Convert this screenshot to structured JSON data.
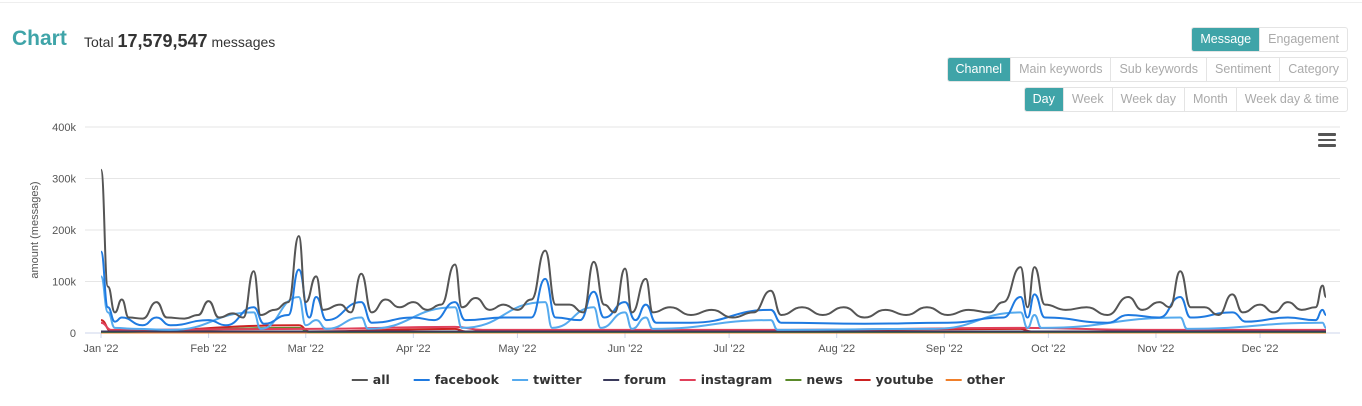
{
  "header": {
    "title": "Chart",
    "total_prefix": "Total",
    "total_value": "17,579,547",
    "total_suffix": "messages"
  },
  "metric_tabs": [
    {
      "label": "Message",
      "active": true
    },
    {
      "label": "Engagement",
      "active": false
    }
  ],
  "group_tabs": [
    {
      "label": "Channel",
      "active": true
    },
    {
      "label": "Main keywords",
      "active": false
    },
    {
      "label": "Sub keywords",
      "active": false
    },
    {
      "label": "Sentiment",
      "active": false
    },
    {
      "label": "Category",
      "active": false
    }
  ],
  "period_tabs": [
    {
      "label": "Day",
      "active": true
    },
    {
      "label": "Week",
      "active": false
    },
    {
      "label": "Week day",
      "active": false
    },
    {
      "label": "Month",
      "active": false
    },
    {
      "label": "Week day & time",
      "active": false
    }
  ],
  "chart_data": {
    "type": "line",
    "ylabel": "amount (messages)",
    "ylim": [
      0,
      400000
    ],
    "yticks": [
      "0",
      "100k",
      "200k",
      "300k",
      "400k"
    ],
    "xticks": [
      {
        "day": 0,
        "label": "Jan '22"
      },
      {
        "day": 31,
        "label": "Feb '22"
      },
      {
        "day": 59,
        "label": "Mar '22"
      },
      {
        "day": 90,
        "label": "Apr '22"
      },
      {
        "day": 120,
        "label": "May '22"
      },
      {
        "day": 151,
        "label": "Jun '22"
      },
      {
        "day": 181,
        "label": "Jul '22"
      },
      {
        "day": 212,
        "label": "Aug '22"
      },
      {
        "day": 243,
        "label": "Sep '22"
      },
      {
        "day": 273,
        "label": "Oct '22"
      },
      {
        "day": 304,
        "label": "Nov '22"
      },
      {
        "day": 334,
        "label": "Dec '22"
      }
    ],
    "x_range_days": [
      0,
      353
    ],
    "series": [
      {
        "name": "all",
        "color": "#555555",
        "points": [
          [
            0,
            317000
          ],
          [
            2,
            90000
          ],
          [
            4,
            40000
          ],
          [
            6,
            65000
          ],
          [
            8,
            30000
          ],
          [
            12,
            28000
          ],
          [
            16,
            60000
          ],
          [
            19,
            30000
          ],
          [
            24,
            28000
          ],
          [
            28,
            35000
          ],
          [
            31,
            62000
          ],
          [
            34,
            30000
          ],
          [
            38,
            38000
          ],
          [
            41,
            30000
          ],
          [
            44,
            120000
          ],
          [
            46,
            35000
          ],
          [
            50,
            45000
          ],
          [
            54,
            60000
          ],
          [
            57,
            188000
          ],
          [
            59,
            60000
          ],
          [
            62,
            110000
          ],
          [
            64,
            45000
          ],
          [
            69,
            55000
          ],
          [
            72,
            40000
          ],
          [
            75,
            115000
          ],
          [
            78,
            40000
          ],
          [
            82,
            65000
          ],
          [
            86,
            50000
          ],
          [
            90,
            60000
          ],
          [
            94,
            45000
          ],
          [
            98,
            55000
          ],
          [
            102,
            133000
          ],
          [
            104,
            50000
          ],
          [
            108,
            68000
          ],
          [
            112,
            45000
          ],
          [
            116,
            55000
          ],
          [
            120,
            45000
          ],
          [
            124,
            65000
          ],
          [
            128,
            160000
          ],
          [
            131,
            55000
          ],
          [
            135,
            55000
          ],
          [
            139,
            40000
          ],
          [
            142,
            138000
          ],
          [
            145,
            55000
          ],
          [
            148,
            40000
          ],
          [
            151,
            125000
          ],
          [
            153,
            40000
          ],
          [
            157,
            105000
          ],
          [
            159,
            40000
          ],
          [
            164,
            50000
          ],
          [
            170,
            35000
          ],
          [
            176,
            45000
          ],
          [
            182,
            30000
          ],
          [
            188,
            40000
          ],
          [
            193,
            82000
          ],
          [
            196,
            35000
          ],
          [
            202,
            50000
          ],
          [
            208,
            35000
          ],
          [
            214,
            50000
          ],
          [
            220,
            30000
          ],
          [
            226,
            45000
          ],
          [
            232,
            35000
          ],
          [
            238,
            50000
          ],
          [
            244,
            35000
          ],
          [
            250,
            45000
          ],
          [
            256,
            40000
          ],
          [
            260,
            60000
          ],
          [
            265,
            128000
          ],
          [
            267,
            50000
          ],
          [
            269,
            128000
          ],
          [
            272,
            55000
          ],
          [
            278,
            45000
          ],
          [
            284,
            50000
          ],
          [
            290,
            35000
          ],
          [
            296,
            70000
          ],
          [
            300,
            45000
          ],
          [
            305,
            60000
          ],
          [
            308,
            50000
          ],
          [
            311,
            120000
          ],
          [
            314,
            50000
          ],
          [
            318,
            50000
          ],
          [
            322,
            35000
          ],
          [
            326,
            75000
          ],
          [
            329,
            40000
          ],
          [
            334,
            55000
          ],
          [
            338,
            40000
          ],
          [
            342,
            60000
          ],
          [
            346,
            45000
          ],
          [
            350,
            50000
          ],
          [
            352,
            92000
          ],
          [
            353,
            70000
          ]
        ]
      },
      {
        "name": "facebook",
        "color": "#1f7ae0",
        "points": [
          [
            0,
            158000
          ],
          [
            2,
            50000
          ],
          [
            4,
            22000
          ],
          [
            6,
            30000
          ],
          [
            12,
            15000
          ],
          [
            16,
            30000
          ],
          [
            20,
            15000
          ],
          [
            31,
            25000
          ],
          [
            36,
            15000
          ],
          [
            44,
            50000
          ],
          [
            47,
            18000
          ],
          [
            54,
            35000
          ],
          [
            57,
            123000
          ],
          [
            60,
            30000
          ],
          [
            62,
            70000
          ],
          [
            65,
            25000
          ],
          [
            75,
            60000
          ],
          [
            78,
            20000
          ],
          [
            90,
            30000
          ],
          [
            96,
            25000
          ],
          [
            102,
            60000
          ],
          [
            105,
            25000
          ],
          [
            116,
            30000
          ],
          [
            124,
            30000
          ],
          [
            128,
            105000
          ],
          [
            131,
            30000
          ],
          [
            138,
            25000
          ],
          [
            142,
            80000
          ],
          [
            145,
            30000
          ],
          [
            151,
            60000
          ],
          [
            154,
            25000
          ],
          [
            157,
            55000
          ],
          [
            160,
            20000
          ],
          [
            170,
            20000
          ],
          [
            193,
            45000
          ],
          [
            196,
            20000
          ],
          [
            220,
            18000
          ],
          [
            244,
            20000
          ],
          [
            260,
            30000
          ],
          [
            265,
            70000
          ],
          [
            267,
            30000
          ],
          [
            269,
            75000
          ],
          [
            272,
            30000
          ],
          [
            290,
            20000
          ],
          [
            296,
            35000
          ],
          [
            305,
            30000
          ],
          [
            311,
            70000
          ],
          [
            314,
            30000
          ],
          [
            326,
            40000
          ],
          [
            330,
            22000
          ],
          [
            342,
            30000
          ],
          [
            350,
            25000
          ],
          [
            352,
            45000
          ],
          [
            353,
            35000
          ]
        ]
      },
      {
        "name": "twitter",
        "color": "#55aaee",
        "points": [
          [
            0,
            110000
          ],
          [
            2,
            40000
          ],
          [
            4,
            10000
          ],
          [
            10,
            8000
          ],
          [
            20,
            6000
          ],
          [
            44,
            40000
          ],
          [
            46,
            8000
          ],
          [
            57,
            70000
          ],
          [
            59,
            15000
          ],
          [
            62,
            25000
          ],
          [
            65,
            8000
          ],
          [
            75,
            30000
          ],
          [
            77,
            8000
          ],
          [
            102,
            50000
          ],
          [
            104,
            10000
          ],
          [
            128,
            60000
          ],
          [
            130,
            10000
          ],
          [
            142,
            50000
          ],
          [
            144,
            10000
          ],
          [
            151,
            40000
          ],
          [
            153,
            8000
          ],
          [
            157,
            30000
          ],
          [
            159,
            8000
          ],
          [
            193,
            25000
          ],
          [
            195,
            6000
          ],
          [
            240,
            8000
          ],
          [
            265,
            40000
          ],
          [
            267,
            10000
          ],
          [
            269,
            35000
          ],
          [
            271,
            10000
          ],
          [
            311,
            30000
          ],
          [
            313,
            8000
          ],
          [
            352,
            20000
          ],
          [
            353,
            10000
          ]
        ]
      },
      {
        "name": "forum",
        "color": "#3a3a5c",
        "points": [
          [
            0,
            3000
          ],
          [
            353,
            3000
          ]
        ]
      },
      {
        "name": "instagram",
        "color": "#e0405a",
        "points": [
          [
            0,
            20000
          ],
          [
            3,
            6000
          ],
          [
            60,
            8000
          ],
          [
            102,
            12000
          ],
          [
            110,
            6000
          ],
          [
            200,
            6000
          ],
          [
            265,
            10000
          ],
          [
            300,
            6000
          ],
          [
            353,
            6000
          ]
        ]
      },
      {
        "name": "news",
        "color": "#5a8a2a",
        "points": [
          [
            0,
            2000
          ],
          [
            57,
            10000
          ],
          [
            60,
            2000
          ],
          [
            353,
            2000
          ]
        ]
      },
      {
        "name": "youtube",
        "color": "#cc2222",
        "points": [
          [
            0,
            25000
          ],
          [
            3,
            3000
          ],
          [
            57,
            15000
          ],
          [
            60,
            3000
          ],
          [
            102,
            8000
          ],
          [
            105,
            3000
          ],
          [
            265,
            8000
          ],
          [
            268,
            3000
          ],
          [
            353,
            3000
          ]
        ]
      },
      {
        "name": "other",
        "color": "#f07f2a",
        "points": [
          [
            0,
            1000
          ],
          [
            353,
            1000
          ]
        ]
      }
    ]
  }
}
